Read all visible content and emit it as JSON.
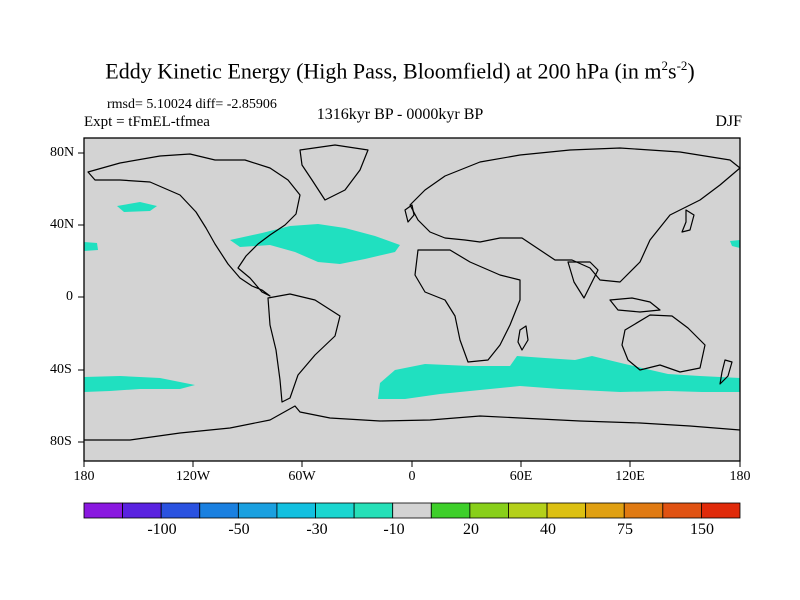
{
  "title": {
    "main": "Eddy Kinetic Energy (High Pass, Bloomfield) at 200 hPa (in m",
    "sup1": "2",
    "mid": "s",
    "sup2": "-2",
    "end": ")"
  },
  "stats": "rmsd= 5.10024 diff= -2.85906",
  "expt": "Expt = tFmEL-tfmea",
  "period": "1316kyr BP - 0000kyr BP",
  "season": "DJF",
  "map": {
    "lat_labels": [
      "80N",
      "40N",
      "0",
      "40S",
      "80S"
    ],
    "lon_labels": [
      "180",
      "120W",
      "60W",
      "0",
      "60E",
      "120E",
      "180"
    ],
    "land_color": "#d3d3d3",
    "anomaly_color": "#20e0c0"
  },
  "colorbar": {
    "colors": [
      "#8a18e0",
      "#5a22e0",
      "#2a52e0",
      "#1a80e0",
      "#1aa0e0",
      "#12c0e0",
      "#1ad6d0",
      "#26e0b8",
      "#d3d3d3",
      "#3ecf2a",
      "#88cf1a",
      "#b4d01a",
      "#dcc012",
      "#e0a012",
      "#e07a12",
      "#e05212",
      "#e02a0a"
    ],
    "labels": [
      "-100",
      "-50",
      "-30",
      "-10",
      "20",
      "40",
      "75",
      "150"
    ]
  }
}
